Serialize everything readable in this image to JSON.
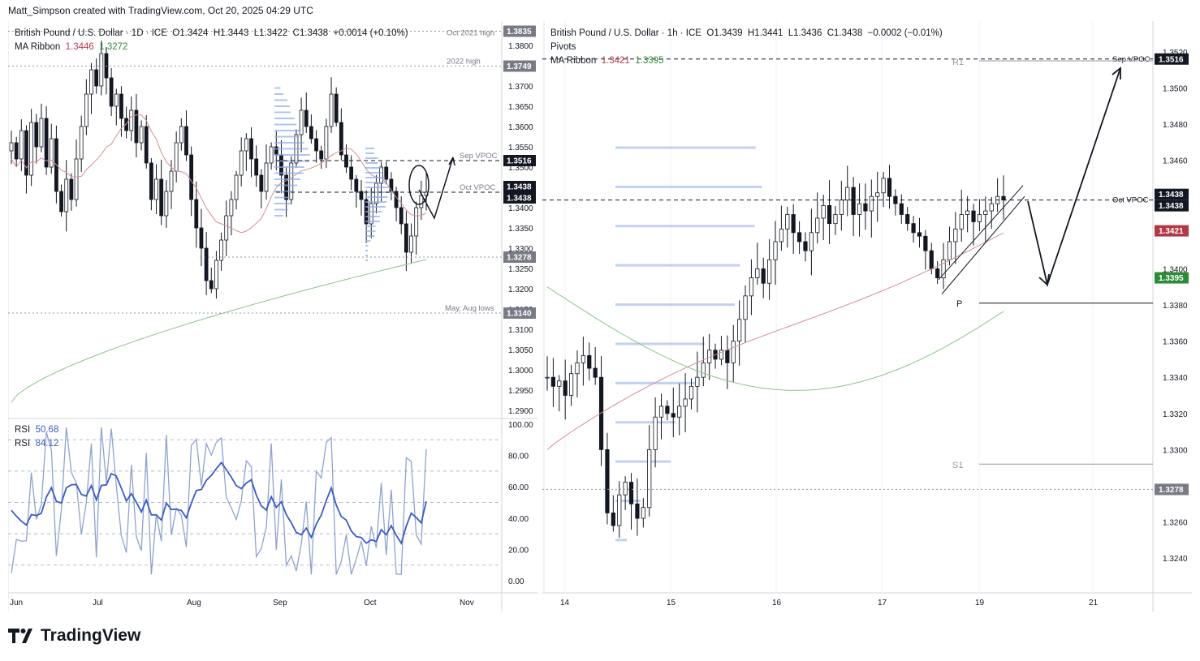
{
  "header": {
    "text": "Matt_Simpson created with TradingView.com, Oct 20, 2025 04:29 UTC"
  },
  "brand": {
    "logo_text": "TradingView"
  },
  "colors": {
    "candle": "#131722",
    "ma_fast": "#d38f95",
    "ma_slow": "#8cc28c",
    "volume_profile": "#8fa9e8",
    "rsi_fast": "#8fa2d0",
    "rsi_slow": "#3a5cc7"
  },
  "left": {
    "legend": {
      "symbol": "British Pound / U.S. Dollar · 1D · ICE",
      "o": "O1.3424",
      "h": "H1.3443",
      "l": "L1.3422",
      "c": "C1.3438",
      "chg": "+0.0014 (+0.10%)",
      "ma_label": "MA Ribbon",
      "ma1": "1.3446",
      "ma2": "1.3272"
    },
    "rsi_legend": {
      "label1": "RSI",
      "value1": "50.68",
      "label2": "RSI",
      "value2": "84.12"
    },
    "annotations": {
      "oct2021_high": "Oct 2021 high",
      "high_2022": "2022 high",
      "sep_vpoc": "Sep VPOC",
      "oct_vpoc": "Oct VPOC",
      "may_aug_lows": "May, Aug lows"
    },
    "price_badges": [
      "1.3835",
      "1.3749",
      "1.3516",
      "1.3438",
      "1.3438",
      "1.3278",
      "1.3140"
    ]
  },
  "right": {
    "legend": {
      "symbol": "British Pound / U.S. Dollar · 1h · ICE",
      "o": "O1.3439",
      "h": "H1.3441",
      "l": "L1.3436",
      "c": "C1.3438",
      "chg": "−0.0002 (−0.01%)",
      "pivots": "Pivots",
      "ma_label": "MA Ribbon",
      "ma1": "1.3421",
      "ma2": "1.3395"
    },
    "annotations": {
      "r1": "R1",
      "p": "P",
      "s1": "S1",
      "sep_vpoc": "Sep VPOC",
      "oct_vpoc": "Oct VPOC"
    },
    "price_badges": [
      "1.3516",
      "1.3438",
      "1.3438",
      "1.3421",
      "1.3395",
      "1.3278"
    ]
  },
  "chart_data": [
    {
      "type": "candlestick",
      "title": "British Pound / U.S. Dollar · 1D · ICE",
      "y_ticks": [
        "1.3800",
        "1.3700",
        "1.3650",
        "1.3600",
        "1.3550",
        "1.3500",
        "1.3450",
        "1.3400",
        "1.3350",
        "1.3300",
        "1.3250",
        "1.3200",
        "1.3150",
        "1.3100",
        "1.3050",
        "1.3000",
        "1.2950",
        "1.2900"
      ],
      "ylim": [
        1.288,
        1.386
      ],
      "x_ticks": [
        "Jun",
        "Jul",
        "Aug",
        "Sep",
        "Oct",
        "Nov"
      ],
      "levels": [
        {
          "label": "Oct 2021 high",
          "value": 1.3835
        },
        {
          "label": "2022 high",
          "value": 1.3749
        },
        {
          "label": "Sep VPOC",
          "value": 1.3516
        },
        {
          "label": "Oct VPOC",
          "value": 1.3438
        },
        {
          "label": "May, Aug lows",
          "value": 1.314
        }
      ],
      "closes": [
        1.356,
        1.352,
        1.359,
        1.348,
        1.361,
        1.355,
        1.362,
        1.35,
        1.357,
        1.344,
        1.339,
        1.347,
        1.342,
        1.352,
        1.36,
        1.368,
        1.374,
        1.37,
        1.378,
        1.372,
        1.365,
        1.368,
        1.362,
        1.359,
        1.364,
        1.356,
        1.36,
        1.351,
        1.342,
        1.347,
        1.338,
        1.344,
        1.349,
        1.356,
        1.36,
        1.353,
        1.342,
        1.335,
        1.33,
        1.322,
        1.32,
        1.327,
        1.332,
        1.338,
        1.342,
        1.348,
        1.354,
        1.357,
        1.352,
        1.348,
        1.344,
        1.351,
        1.355,
        1.353,
        1.348,
        1.342,
        1.351,
        1.358,
        1.364,
        1.36,
        1.357,
        1.354,
        1.352,
        1.36,
        1.368,
        1.361,
        1.353,
        1.35,
        1.347,
        1.344,
        1.342,
        1.336,
        1.341,
        1.346,
        1.35,
        1.347,
        1.344,
        1.34,
        1.336,
        1.329,
        1.333,
        1.34,
        1.343,
        1.3438
      ],
      "moving_averages": [
        {
          "name": "MA Ribbon",
          "value": 1.3446
        },
        {
          "name": "MA Ribbon",
          "value": 1.3272
        }
      ],
      "rsi_panel": {
        "y_ticks": [
          "100.00",
          "80.00",
          "60.00",
          "40.00",
          "20.00",
          "0.00"
        ],
        "series": [
          {
            "name": "RSI",
            "last": 50.68
          },
          {
            "name": "RSI",
            "last": 84.12
          }
        ]
      }
    },
    {
      "type": "candlestick",
      "title": "British Pound / U.S. Dollar · 1h · ICE",
      "y_ticks": [
        "1.3520",
        "1.3500",
        "1.3480",
        "1.3460",
        "1.3440",
        "1.3400",
        "1.3380",
        "1.3360",
        "1.3340",
        "1.3320",
        "1.3300",
        "1.3260",
        "1.3240"
      ],
      "ylim": [
        1.3232,
        1.3528
      ],
      "x_ticks": [
        "14",
        "15",
        "16",
        "17",
        "19",
        "21"
      ],
      "levels": [
        {
          "label": "Sep VPOC",
          "value": 1.3516
        },
        {
          "label": "Oct VPOC",
          "value": 1.3438
        },
        {
          "label": "R1",
          "value": 1.3515
        },
        {
          "label": "P",
          "value": 1.3381
        },
        {
          "label": "S1",
          "value": 1.3292
        },
        {
          "label": "",
          "value": 1.3278
        }
      ],
      "closes": [
        1.334,
        1.3335,
        1.3338,
        1.333,
        1.3342,
        1.3348,
        1.3352,
        1.3345,
        1.334,
        1.33,
        1.3265,
        1.3258,
        1.3275,
        1.3282,
        1.327,
        1.3262,
        1.3268,
        1.33,
        1.3318,
        1.3324,
        1.332,
        1.3318,
        1.3324,
        1.3328,
        1.3335,
        1.334,
        1.3348,
        1.3355,
        1.335,
        1.3355,
        1.3348,
        1.336,
        1.3372,
        1.3385,
        1.3395,
        1.34,
        1.3392,
        1.3405,
        1.3415,
        1.3422,
        1.343,
        1.342,
        1.3415,
        1.341,
        1.342,
        1.3428,
        1.3435,
        1.3425,
        1.343,
        1.3438,
        1.3445,
        1.343,
        1.3436,
        1.3432,
        1.344,
        1.3442,
        1.345,
        1.344,
        1.3436,
        1.343,
        1.3425,
        1.342,
        1.3418,
        1.341,
        1.34,
        1.3395,
        1.3405,
        1.3415,
        1.3422,
        1.343,
        1.3432,
        1.3426,
        1.343,
        1.3432,
        1.3436,
        1.344,
        1.3438
      ],
      "moving_averages": [
        {
          "name": "MA Ribbon",
          "value": 1.3421
        },
        {
          "name": "MA Ribbon",
          "value": 1.3395
        }
      ]
    }
  ]
}
